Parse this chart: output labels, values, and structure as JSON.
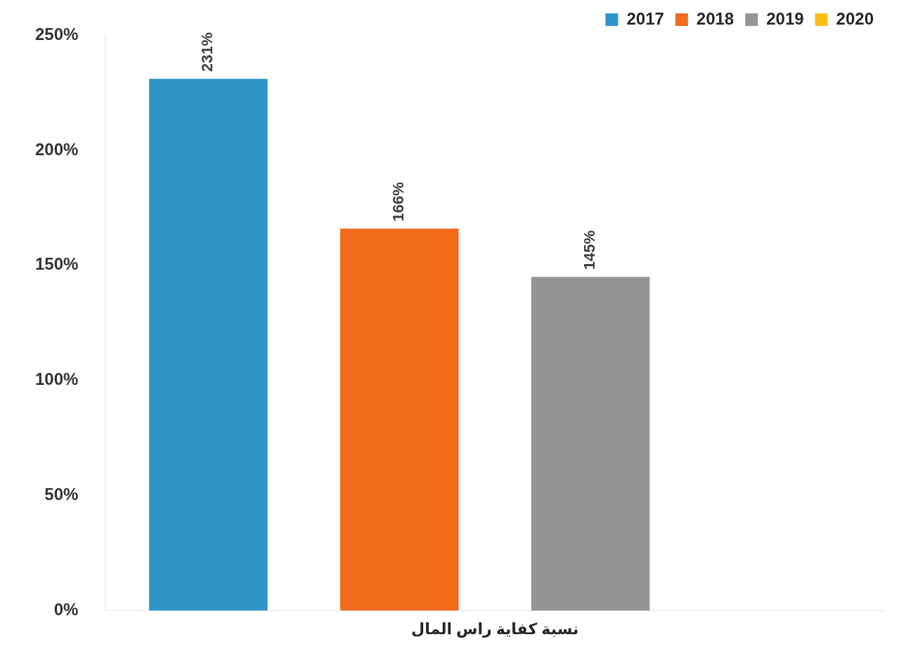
{
  "chart_data": {
    "type": "bar",
    "categories": [
      "نسبة كفاية راس المال"
    ],
    "series": [
      {
        "name": "2017",
        "color": "#2e95c9",
        "values": [
          231
        ],
        "value_labels": [
          "231%"
        ]
      },
      {
        "name": "2018",
        "color": "#f26b1d",
        "values": [
          166
        ],
        "value_labels": [
          "166%"
        ]
      },
      {
        "name": "2019",
        "color": "#959595",
        "values": [
          145
        ],
        "value_labels": [
          "145%"
        ]
      },
      {
        "name": "2020",
        "color": "#fbbf12",
        "values": [
          null
        ],
        "value_labels": [
          null
        ]
      }
    ],
    "ylim": [
      0,
      250
    ],
    "yticks": [
      {
        "value": 0,
        "label": "0%"
      },
      {
        "value": 50,
        "label": "50%"
      },
      {
        "value": 100,
        "label": "100%"
      },
      {
        "value": 150,
        "label": "150%"
      },
      {
        "value": 200,
        "label": "200%"
      },
      {
        "value": 250,
        "label": "250%"
      }
    ],
    "grid": false,
    "legend": "top right"
  }
}
